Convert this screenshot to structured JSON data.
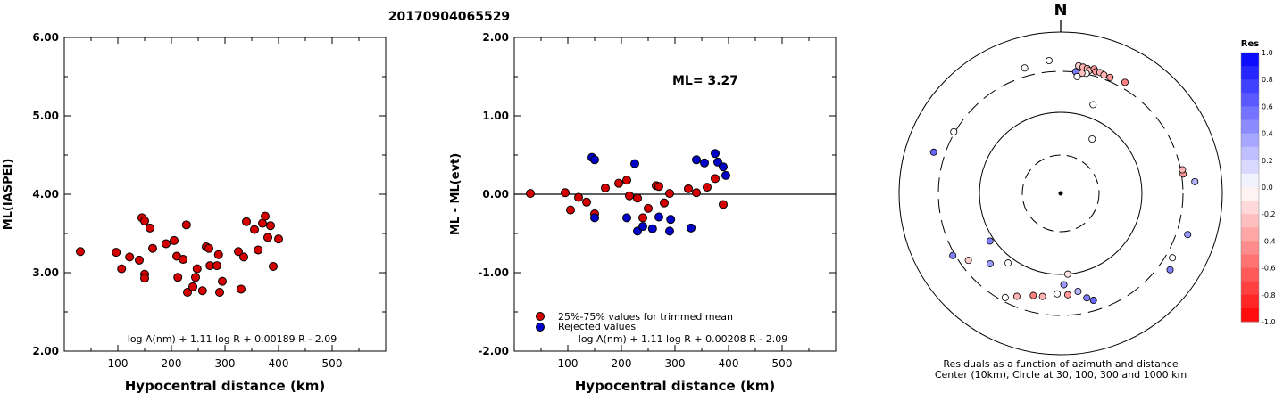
{
  "figure_title": "20170904065529",
  "chart_data": [
    {
      "type": "scatter",
      "ylabel": "ML(IASPEI)",
      "xlabel": "Hypocentral distance (km)",
      "xlim": [
        0,
        600
      ],
      "ylim": [
        2.0,
        6.0
      ],
      "x_ticks": [
        "100",
        "200",
        "300",
        "400",
        "500"
      ],
      "y_ticks": [
        "2.00",
        "3.00",
        "4.00",
        "5.00",
        "6.00"
      ],
      "formula": "log A(nm) + 1.11 log R + 0.00189 R - 2.09",
      "point_color": "#d40000",
      "series": [
        {
          "points": [
            [
              30,
              3.27
            ],
            [
              97,
              3.26
            ],
            [
              107,
              3.05
            ],
            [
              122,
              3.2
            ],
            [
              140,
              3.16
            ],
            [
              145,
              3.7
            ],
            [
              150,
              2.98
            ],
            [
              150,
              3.66
            ],
            [
              150,
              2.93
            ],
            [
              160,
              3.57
            ],
            [
              165,
              3.31
            ],
            [
              190,
              3.37
            ],
            [
              205,
              3.41
            ],
            [
              210,
              3.21
            ],
            [
              212,
              2.94
            ],
            [
              222,
              3.17
            ],
            [
              228,
              3.61
            ],
            [
              230,
              2.75
            ],
            [
              240,
              2.82
            ],
            [
              245,
              2.94
            ],
            [
              248,
              3.05
            ],
            [
              258,
              2.77
            ],
            [
              265,
              3.33
            ],
            [
              270,
              3.31
            ],
            [
              272,
              3.09
            ],
            [
              285,
              3.09
            ],
            [
              288,
              3.23
            ],
            [
              290,
              2.75
            ],
            [
              295,
              2.89
            ],
            [
              325,
              3.27
            ],
            [
              330,
              2.79
            ],
            [
              335,
              3.2
            ],
            [
              340,
              3.65
            ],
            [
              355,
              3.55
            ],
            [
              362,
              3.29
            ],
            [
              370,
              3.63
            ],
            [
              375,
              3.72
            ],
            [
              380,
              3.45
            ],
            [
              385,
              3.6
            ],
            [
              390,
              3.08
            ],
            [
              400,
              3.43
            ]
          ]
        }
      ]
    },
    {
      "type": "scatter",
      "ylabel": "ML - ML(evt)",
      "xlabel": "Hypocentral distance (km)",
      "xlim": [
        0,
        600
      ],
      "ylim": [
        -2.0,
        2.0
      ],
      "x_ticks": [
        "100",
        "200",
        "300",
        "400",
        "500"
      ],
      "y_ticks": [
        "-2.00",
        "-1.00",
        "0.00",
        "1.00",
        "2.00"
      ],
      "annotation": "ML= 3.27",
      "formula": "log A(nm) + 1.11 log R + 0.00208 R - 2.09",
      "legend": {
        "position": "bottom-left",
        "entries": [
          "25%-75% values for trimmed mean",
          "Rejected values"
        ]
      },
      "series": [
        {
          "name": "25%-75% values for trimmed mean",
          "color": "#d40000",
          "points": [
            [
              30,
              0.01
            ],
            [
              95,
              0.02
            ],
            [
              105,
              -0.2
            ],
            [
              120,
              -0.04
            ],
            [
              135,
              -0.1
            ],
            [
              150,
              -0.25
            ],
            [
              170,
              0.08
            ],
            [
              195,
              0.14
            ],
            [
              210,
              0.18
            ],
            [
              215,
              -0.02
            ],
            [
              230,
              -0.05
            ],
            [
              240,
              -0.3
            ],
            [
              250,
              -0.18
            ],
            [
              265,
              0.11
            ],
            [
              270,
              0.1
            ],
            [
              280,
              -0.11
            ],
            [
              290,
              0.01
            ],
            [
              325,
              0.07
            ],
            [
              340,
              0.02
            ],
            [
              360,
              0.09
            ],
            [
              375,
              0.2
            ],
            [
              390,
              -0.13
            ]
          ]
        },
        {
          "name": "Rejected values",
          "color": "#0000c8",
          "points": [
            [
              145,
              0.47
            ],
            [
              150,
              0.44
            ],
            [
              150,
              -0.3
            ],
            [
              210,
              -0.3
            ],
            [
              225,
              0.39
            ],
            [
              230,
              -0.47
            ],
            [
              240,
              -0.41
            ],
            [
              258,
              -0.44
            ],
            [
              270,
              -0.29
            ],
            [
              290,
              -0.47
            ],
            [
              292,
              -0.32
            ],
            [
              330,
              -0.43
            ],
            [
              340,
              0.44
            ],
            [
              355,
              0.4
            ],
            [
              375,
              0.52
            ],
            [
              380,
              0.41
            ],
            [
              390,
              0.35
            ],
            [
              395,
              0.24
            ]
          ]
        }
      ]
    },
    {
      "type": "polar-scatter",
      "north_label": "N",
      "caption_line1": "Residuals as a function of azimuth and distance",
      "caption_line2": "Center (10km), Circle at 30, 100, 300 and 1000 km",
      "colorbar": {
        "label": "Res",
        "ticks": [
          "1.0",
          "0.8",
          "0.6",
          "0.4",
          "0.2",
          "0.0",
          "-0.2",
          "-0.4",
          "-0.6",
          "-0.8",
          "-1.0"
        ],
        "positive_color": "#0000ff",
        "negative_color": "#ff0000"
      },
      "stations": [
        {
          "az": 355,
          "dist_km": 500,
          "res": 0.0
        },
        {
          "az": 344,
          "dist_km": 450,
          "res": 0.02
        },
        {
          "az": 8,
          "dist_km": 420,
          "res": -0.2
        },
        {
          "az": 10,
          "dist_km": 410,
          "res": -0.3
        },
        {
          "az": 12,
          "dist_km": 400,
          "res": -0.3
        },
        {
          "az": 13,
          "dist_km": 370,
          "res": -0.25
        },
        {
          "az": 15,
          "dist_km": 420,
          "res": -0.4
        },
        {
          "az": 16,
          "dist_km": 380,
          "res": -0.4
        },
        {
          "az": 18,
          "dist_km": 390,
          "res": -0.3
        },
        {
          "az": 20,
          "dist_km": 370,
          "res": -0.3
        },
        {
          "az": 23,
          "dist_km": 370,
          "res": -0.4
        },
        {
          "az": 30,
          "dist_km": 410,
          "res": -0.5
        },
        {
          "az": 12,
          "dist_km": 310,
          "res": 0.0
        },
        {
          "az": 10,
          "dist_km": 300,
          "res": -0.25
        },
        {
          "az": 7,
          "dist_km": 310,
          "res": 0.5
        },
        {
          "az": 8,
          "dist_km": 280,
          "res": 0.0
        },
        {
          "az": 20,
          "dist_km": 165,
          "res": 0.0
        },
        {
          "az": 30,
          "dist_km": 70,
          "res": 0.0
        },
        {
          "az": 300,
          "dist_km": 320,
          "res": 0.0
        },
        {
          "az": 288,
          "dist_km": 500,
          "res": 0.6
        },
        {
          "az": 81,
          "dist_km": 330,
          "res": -0.4
        },
        {
          "az": 79,
          "dist_km": 330,
          "res": -0.3
        },
        {
          "az": 85,
          "dist_km": 520,
          "res": 0.3
        },
        {
          "az": 108,
          "dist_km": 500,
          "res": 0.4
        },
        {
          "az": 125,
          "dist_km": 500,
          "res": 0.5
        },
        {
          "az": 120,
          "dist_km": 420,
          "res": 0.0
        },
        {
          "az": 175,
          "dist_km": 100,
          "res": -0.1
        },
        {
          "az": 178,
          "dist_km": 150,
          "res": 0.4
        },
        {
          "az": 170,
          "dist_km": 190,
          "res": 0.3
        },
        {
          "az": 166,
          "dist_km": 230,
          "res": 0.5
        },
        {
          "az": 163,
          "dist_km": 250,
          "res": 0.6
        },
        {
          "az": 176,
          "dist_km": 200,
          "res": -0.4
        },
        {
          "az": 182,
          "dist_km": 195,
          "res": 0.0
        },
        {
          "az": 190,
          "dist_km": 215,
          "res": -0.3
        },
        {
          "az": 195,
          "dist_km": 220,
          "res": -0.5
        },
        {
          "az": 203,
          "dist_km": 250,
          "res": -0.3
        },
        {
          "az": 208,
          "dist_km": 280,
          "res": 0.0
        },
        {
          "az": 225,
          "dist_km": 190,
          "res": 0.4
        },
        {
          "az": 217,
          "dist_km": 130,
          "res": 0.0
        },
        {
          "az": 236,
          "dist_km": 120,
          "res": 0.5
        },
        {
          "az": 234,
          "dist_km": 260,
          "res": -0.2
        },
        {
          "az": 240,
          "dist_km": 340,
          "res": 0.5
        }
      ]
    }
  ]
}
